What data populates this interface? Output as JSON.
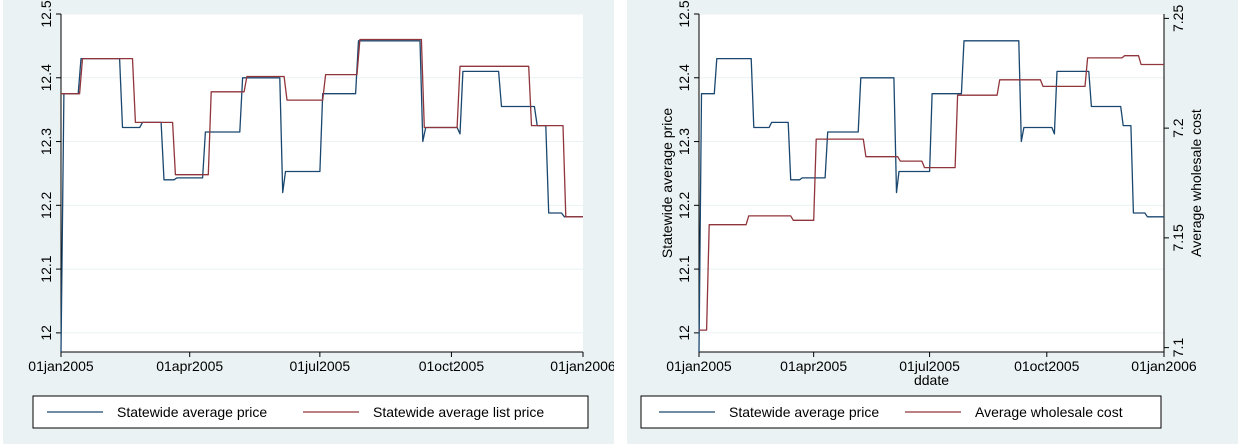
{
  "chart_data": [
    {
      "type": "line",
      "xlabel": "",
      "ylabel": "",
      "x_ticks": [
        "01jan2005",
        "01apr2005",
        "01jul2005",
        "01oct2005",
        "01jan2006"
      ],
      "y_ticks": [
        "12",
        "12.1",
        "12.2",
        "12.3",
        "12.4",
        "12.5"
      ],
      "ylim": [
        11.97,
        12.5
      ],
      "xlim": [
        "2005-01-01",
        "2006-01-01"
      ],
      "grid": "horizontal",
      "legend_position": "bottom",
      "series": [
        {
          "name": "Statewide average price",
          "color": "#1a476f",
          "step": true,
          "points": [
            [
              "2005-01-01",
              11.97
            ],
            [
              "2005-01-03",
              12.375
            ],
            [
              "2005-01-13",
              12.375
            ],
            [
              "2005-01-15",
              12.43
            ],
            [
              "2005-02-11",
              12.43
            ],
            [
              "2005-02-13",
              12.322
            ],
            [
              "2005-02-25",
              12.322
            ],
            [
              "2005-02-27",
              12.33
            ],
            [
              "2005-03-12",
              12.33
            ],
            [
              "2005-03-14",
              12.24
            ],
            [
              "2005-03-21",
              12.24
            ],
            [
              "2005-03-23",
              12.243
            ],
            [
              "2005-04-10",
              12.243
            ],
            [
              "2005-04-12",
              12.315
            ],
            [
              "2005-05-06",
              12.315
            ],
            [
              "2005-05-08",
              12.4
            ],
            [
              "2005-06-03",
              12.4
            ],
            [
              "2005-06-05",
              12.22
            ],
            [
              "2005-06-07",
              12.253
            ],
            [
              "2005-07-01",
              12.253
            ],
            [
              "2005-07-03",
              12.375
            ],
            [
              "2005-07-26",
              12.375
            ],
            [
              "2005-07-28",
              12.458
            ],
            [
              "2005-09-09",
              12.458
            ],
            [
              "2005-09-11",
              12.3
            ],
            [
              "2005-09-13",
              12.322
            ],
            [
              "2005-10-05",
              12.322
            ],
            [
              "2005-10-07",
              12.312
            ],
            [
              "2005-10-09",
              12.41
            ],
            [
              "2005-11-03",
              12.41
            ],
            [
              "2005-11-05",
              12.355
            ],
            [
              "2005-11-28",
              12.355
            ],
            [
              "2005-11-30",
              12.325
            ],
            [
              "2005-12-06",
              12.325
            ],
            [
              "2005-12-08",
              12.188
            ],
            [
              "2005-12-17",
              12.188
            ],
            [
              "2005-12-19",
              12.182
            ],
            [
              "2006-01-01",
              12.182
            ]
          ]
        },
        {
          "name": "Statewide average list price",
          "color": "#90353b",
          "step": true,
          "points": [
            [
              "2005-01-01",
              12.375
            ],
            [
              "2005-01-14",
              12.375
            ],
            [
              "2005-01-16",
              12.43
            ],
            [
              "2005-02-20",
              12.43
            ],
            [
              "2005-02-22",
              12.33
            ],
            [
              "2005-03-20",
              12.33
            ],
            [
              "2005-03-22",
              12.248
            ],
            [
              "2005-04-14",
              12.248
            ],
            [
              "2005-04-16",
              12.378
            ],
            [
              "2005-05-09",
              12.378
            ],
            [
              "2005-05-11",
              12.402
            ],
            [
              "2005-06-06",
              12.402
            ],
            [
              "2005-06-08",
              12.365
            ],
            [
              "2005-07-03",
              12.365
            ],
            [
              "2005-07-05",
              12.405
            ],
            [
              "2005-07-27",
              12.405
            ],
            [
              "2005-07-29",
              12.46
            ],
            [
              "2005-09-10",
              12.46
            ],
            [
              "2005-09-12",
              12.322
            ],
            [
              "2005-10-05",
              12.322
            ],
            [
              "2005-10-07",
              12.418
            ],
            [
              "2005-11-24",
              12.418
            ],
            [
              "2005-11-26",
              12.325
            ],
            [
              "2005-12-18",
              12.325
            ],
            [
              "2005-12-20",
              12.182
            ],
            [
              "2006-01-01",
              12.182
            ]
          ]
        }
      ]
    },
    {
      "type": "line",
      "xlabel": "ddate",
      "ylabel": "Statewide average price",
      "y2label": "Average wholesale cost",
      "x_ticks": [
        "01jan2005",
        "01apr2005",
        "01jul2005",
        "01oct2005",
        "01jan2006"
      ],
      "y_ticks": [
        "12",
        "12.1",
        "12.2",
        "12.3",
        "12.4",
        "12.5"
      ],
      "y2_ticks": [
        "7.1",
        "7.15",
        "7.2",
        "7.25"
      ],
      "ylim": [
        11.97,
        12.5
      ],
      "y2lim": [
        7.098,
        7.252
      ],
      "xlim": [
        "2005-01-01",
        "2006-01-01"
      ],
      "grid": "horizontal",
      "legend_position": "bottom",
      "series": [
        {
          "name": "Statewide average price",
          "color": "#1a476f",
          "axis": "left",
          "step": true,
          "points": [
            [
              "2005-01-01",
              11.97
            ],
            [
              "2005-01-03",
              12.375
            ],
            [
              "2005-01-13",
              12.375
            ],
            [
              "2005-01-15",
              12.43
            ],
            [
              "2005-02-11",
              12.43
            ],
            [
              "2005-02-13",
              12.322
            ],
            [
              "2005-02-25",
              12.322
            ],
            [
              "2005-02-27",
              12.33
            ],
            [
              "2005-03-12",
              12.33
            ],
            [
              "2005-03-14",
              12.24
            ],
            [
              "2005-03-21",
              12.24
            ],
            [
              "2005-03-23",
              12.243
            ],
            [
              "2005-04-10",
              12.243
            ],
            [
              "2005-04-12",
              12.315
            ],
            [
              "2005-05-06",
              12.315
            ],
            [
              "2005-05-08",
              12.4
            ],
            [
              "2005-06-03",
              12.4
            ],
            [
              "2005-06-05",
              12.22
            ],
            [
              "2005-06-07",
              12.253
            ],
            [
              "2005-07-01",
              12.253
            ],
            [
              "2005-07-03",
              12.375
            ],
            [
              "2005-07-26",
              12.375
            ],
            [
              "2005-07-28",
              12.458
            ],
            [
              "2005-09-09",
              12.458
            ],
            [
              "2005-09-11",
              12.3
            ],
            [
              "2005-09-13",
              12.322
            ],
            [
              "2005-10-05",
              12.322
            ],
            [
              "2005-10-07",
              12.312
            ],
            [
              "2005-10-09",
              12.41
            ],
            [
              "2005-11-03",
              12.41
            ],
            [
              "2005-11-05",
              12.355
            ],
            [
              "2005-11-28",
              12.355
            ],
            [
              "2005-11-30",
              12.325
            ],
            [
              "2005-12-06",
              12.325
            ],
            [
              "2005-12-08",
              12.188
            ],
            [
              "2005-12-17",
              12.188
            ],
            [
              "2005-12-19",
              12.182
            ],
            [
              "2006-01-01",
              12.182
            ]
          ]
        },
        {
          "name": "Average wholesale cost",
          "color": "#90353b",
          "axis": "right",
          "step": true,
          "points": [
            [
              "2005-01-01",
              7.108
            ],
            [
              "2005-01-07",
              7.108
            ],
            [
              "2005-01-09",
              7.156
            ],
            [
              "2005-02-07",
              7.156
            ],
            [
              "2005-02-09",
              7.16
            ],
            [
              "2005-03-14",
              7.16
            ],
            [
              "2005-03-16",
              7.158
            ],
            [
              "2005-04-01",
              7.158
            ],
            [
              "2005-04-03",
              7.195
            ],
            [
              "2005-05-10",
              7.195
            ],
            [
              "2005-05-12",
              7.187
            ],
            [
              "2005-06-06",
              7.187
            ],
            [
              "2005-06-08",
              7.185
            ],
            [
              "2005-06-25",
              7.185
            ],
            [
              "2005-06-27",
              7.182
            ],
            [
              "2005-07-21",
              7.182
            ],
            [
              "2005-07-23",
              7.215
            ],
            [
              "2005-08-23",
              7.215
            ],
            [
              "2005-08-25",
              7.222
            ],
            [
              "2005-09-26",
              7.222
            ],
            [
              "2005-09-28",
              7.219
            ],
            [
              "2005-10-31",
              7.219
            ],
            [
              "2005-11-02",
              7.232
            ],
            [
              "2005-11-29",
              7.232
            ],
            [
              "2005-12-01",
              7.233
            ],
            [
              "2005-12-12",
              7.233
            ],
            [
              "2005-12-14",
              7.229
            ],
            [
              "2006-01-01",
              7.229
            ]
          ]
        }
      ]
    }
  ]
}
